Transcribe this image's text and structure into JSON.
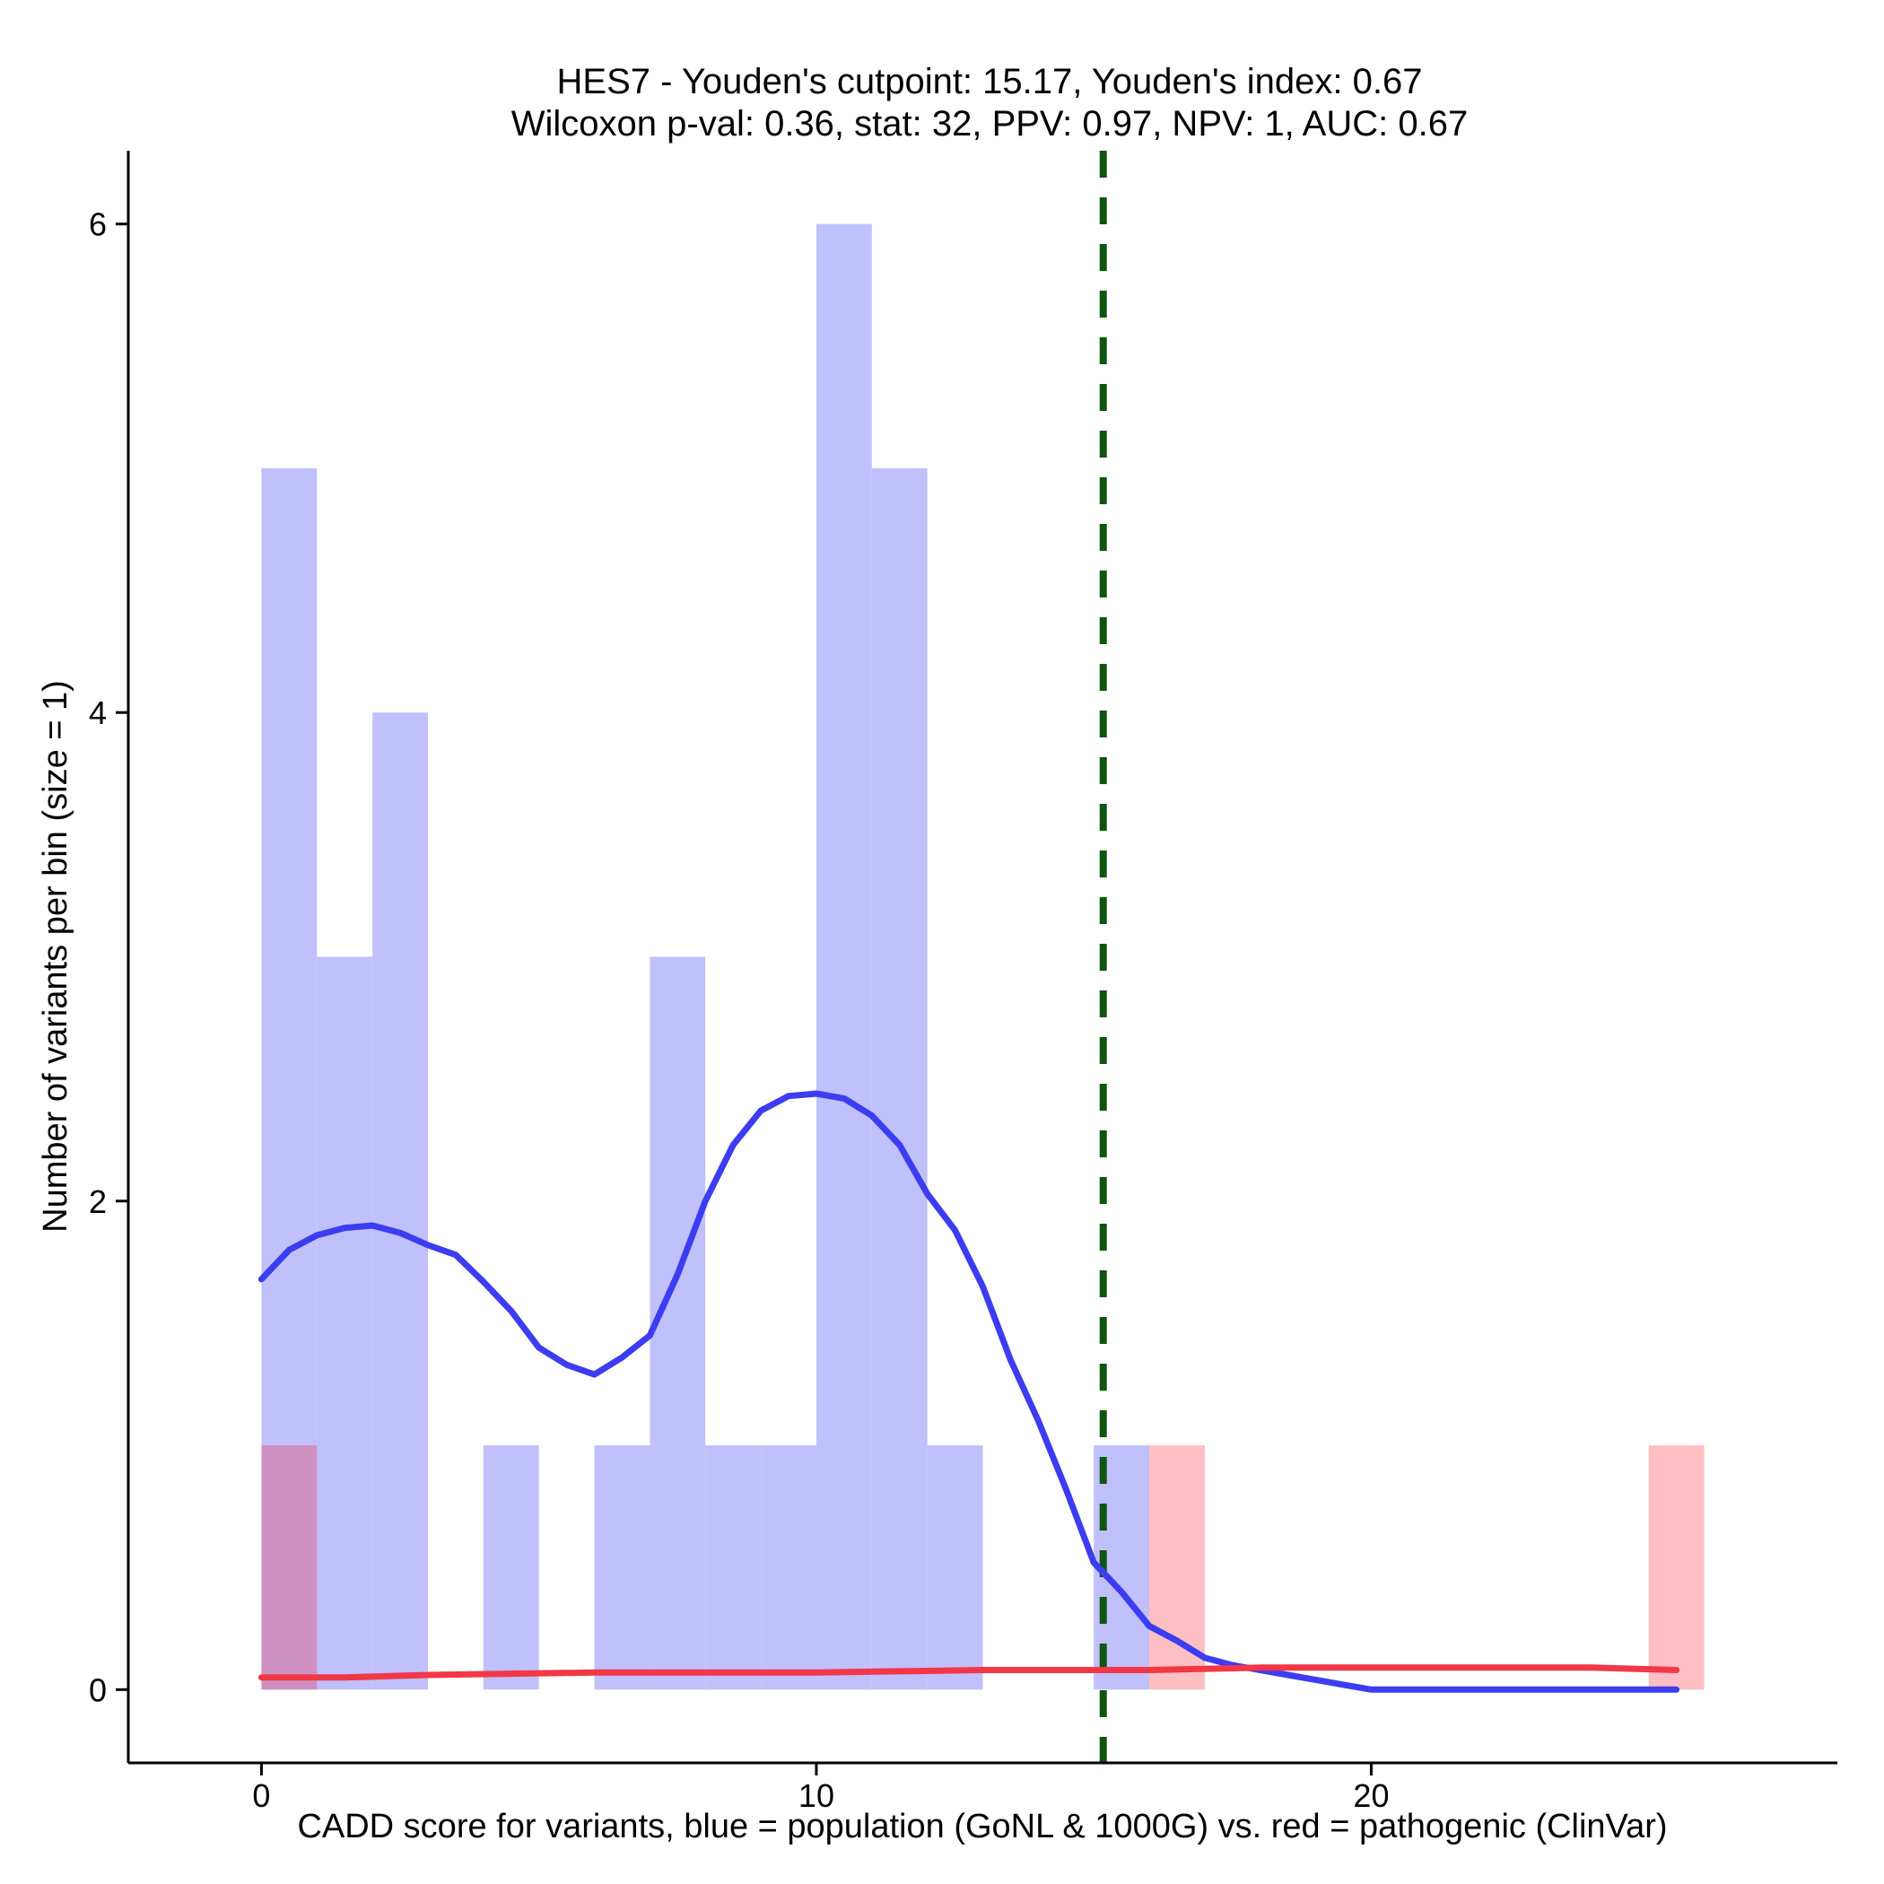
{
  "chart_data": {
    "type": "bar",
    "title_line1": "HES7 - Youden's cutpoint: 15.17, Youden's index: 0.67",
    "title_line2": "Wilcoxon p-val: 0.36, stat: 32, PPV: 0.97, NPV: 1, AUC: 0.67",
    "xlabel": "CADD score for variants, blue = population (GoNL & 1000G) vs. red = pathogenic (ClinVar)",
    "ylabel": "Number of variants per bin (size = 1)",
    "xlim": [
      -2.4,
      28.4
    ],
    "ylim": [
      -0.3,
      6.3
    ],
    "x_ticks": [
      0,
      10,
      20
    ],
    "y_ticks": [
      0,
      2,
      4,
      6
    ],
    "cutpoint": 15.17,
    "bin_size": 1,
    "colors": {
      "population_bar": "#c0c0fc",
      "pathogenic_bar": "#fdbfc3",
      "overlap_bar": "#cd90c1",
      "population_line": "#3c3cf0",
      "pathogenic_line": "#f23747",
      "cutpoint_line": "#0f540f"
    },
    "series": [
      {
        "name": "population (GoNL & 1000G)",
        "bins": [
          {
            "start": 0,
            "count": 5
          },
          {
            "start": 1,
            "count": 3
          },
          {
            "start": 2,
            "count": 4
          },
          {
            "start": 4,
            "count": 1
          },
          {
            "start": 6,
            "count": 1
          },
          {
            "start": 7,
            "count": 3
          },
          {
            "start": 8,
            "count": 1
          },
          {
            "start": 9,
            "count": 1
          },
          {
            "start": 10,
            "count": 6
          },
          {
            "start": 11,
            "count": 5
          },
          {
            "start": 12,
            "count": 1
          },
          {
            "start": 15,
            "count": 1
          }
        ],
        "density": [
          [
            0,
            1.68
          ],
          [
            0.5,
            1.8
          ],
          [
            1,
            1.86
          ],
          [
            1.5,
            1.89
          ],
          [
            2,
            1.9
          ],
          [
            2.5,
            1.87
          ],
          [
            3,
            1.82
          ],
          [
            3.5,
            1.78
          ],
          [
            4,
            1.67
          ],
          [
            4.5,
            1.55
          ],
          [
            5,
            1.4
          ],
          [
            5.5,
            1.33
          ],
          [
            6,
            1.29
          ],
          [
            6.5,
            1.36
          ],
          [
            7,
            1.45
          ],
          [
            7.5,
            1.7
          ],
          [
            8,
            2.0
          ],
          [
            8.5,
            2.23
          ],
          [
            9,
            2.37
          ],
          [
            9.5,
            2.43
          ],
          [
            10,
            2.44
          ],
          [
            10.5,
            2.42
          ],
          [
            11,
            2.35
          ],
          [
            11.5,
            2.23
          ],
          [
            12,
            2.03
          ],
          [
            12.5,
            1.88
          ],
          [
            13,
            1.65
          ],
          [
            13.5,
            1.35
          ],
          [
            14,
            1.1
          ],
          [
            14.5,
            0.82
          ],
          [
            15,
            0.52
          ],
          [
            15.5,
            0.4
          ],
          [
            16,
            0.26
          ],
          [
            16.5,
            0.2
          ],
          [
            17,
            0.13
          ],
          [
            17.5,
            0.1
          ],
          [
            18,
            0.08
          ],
          [
            18.5,
            0.06
          ],
          [
            19,
            0.04
          ],
          [
            19.5,
            0.02
          ],
          [
            20,
            0
          ],
          [
            22,
            0
          ],
          [
            24,
            0
          ],
          [
            25.5,
            0
          ]
        ]
      },
      {
        "name": "pathogenic (ClinVar)",
        "bins": [
          {
            "start": 0,
            "count": 1
          },
          {
            "start": 16,
            "count": 1
          },
          {
            "start": 25,
            "count": 1
          }
        ],
        "density": [
          [
            0,
            0.05
          ],
          [
            1.5,
            0.05
          ],
          [
            3,
            0.06
          ],
          [
            6,
            0.07
          ],
          [
            10,
            0.07
          ],
          [
            13,
            0.08
          ],
          [
            16,
            0.08
          ],
          [
            18,
            0.09
          ],
          [
            20,
            0.09
          ],
          [
            22,
            0.09
          ],
          [
            24,
            0.09
          ],
          [
            25.5,
            0.08
          ]
        ]
      }
    ]
  }
}
